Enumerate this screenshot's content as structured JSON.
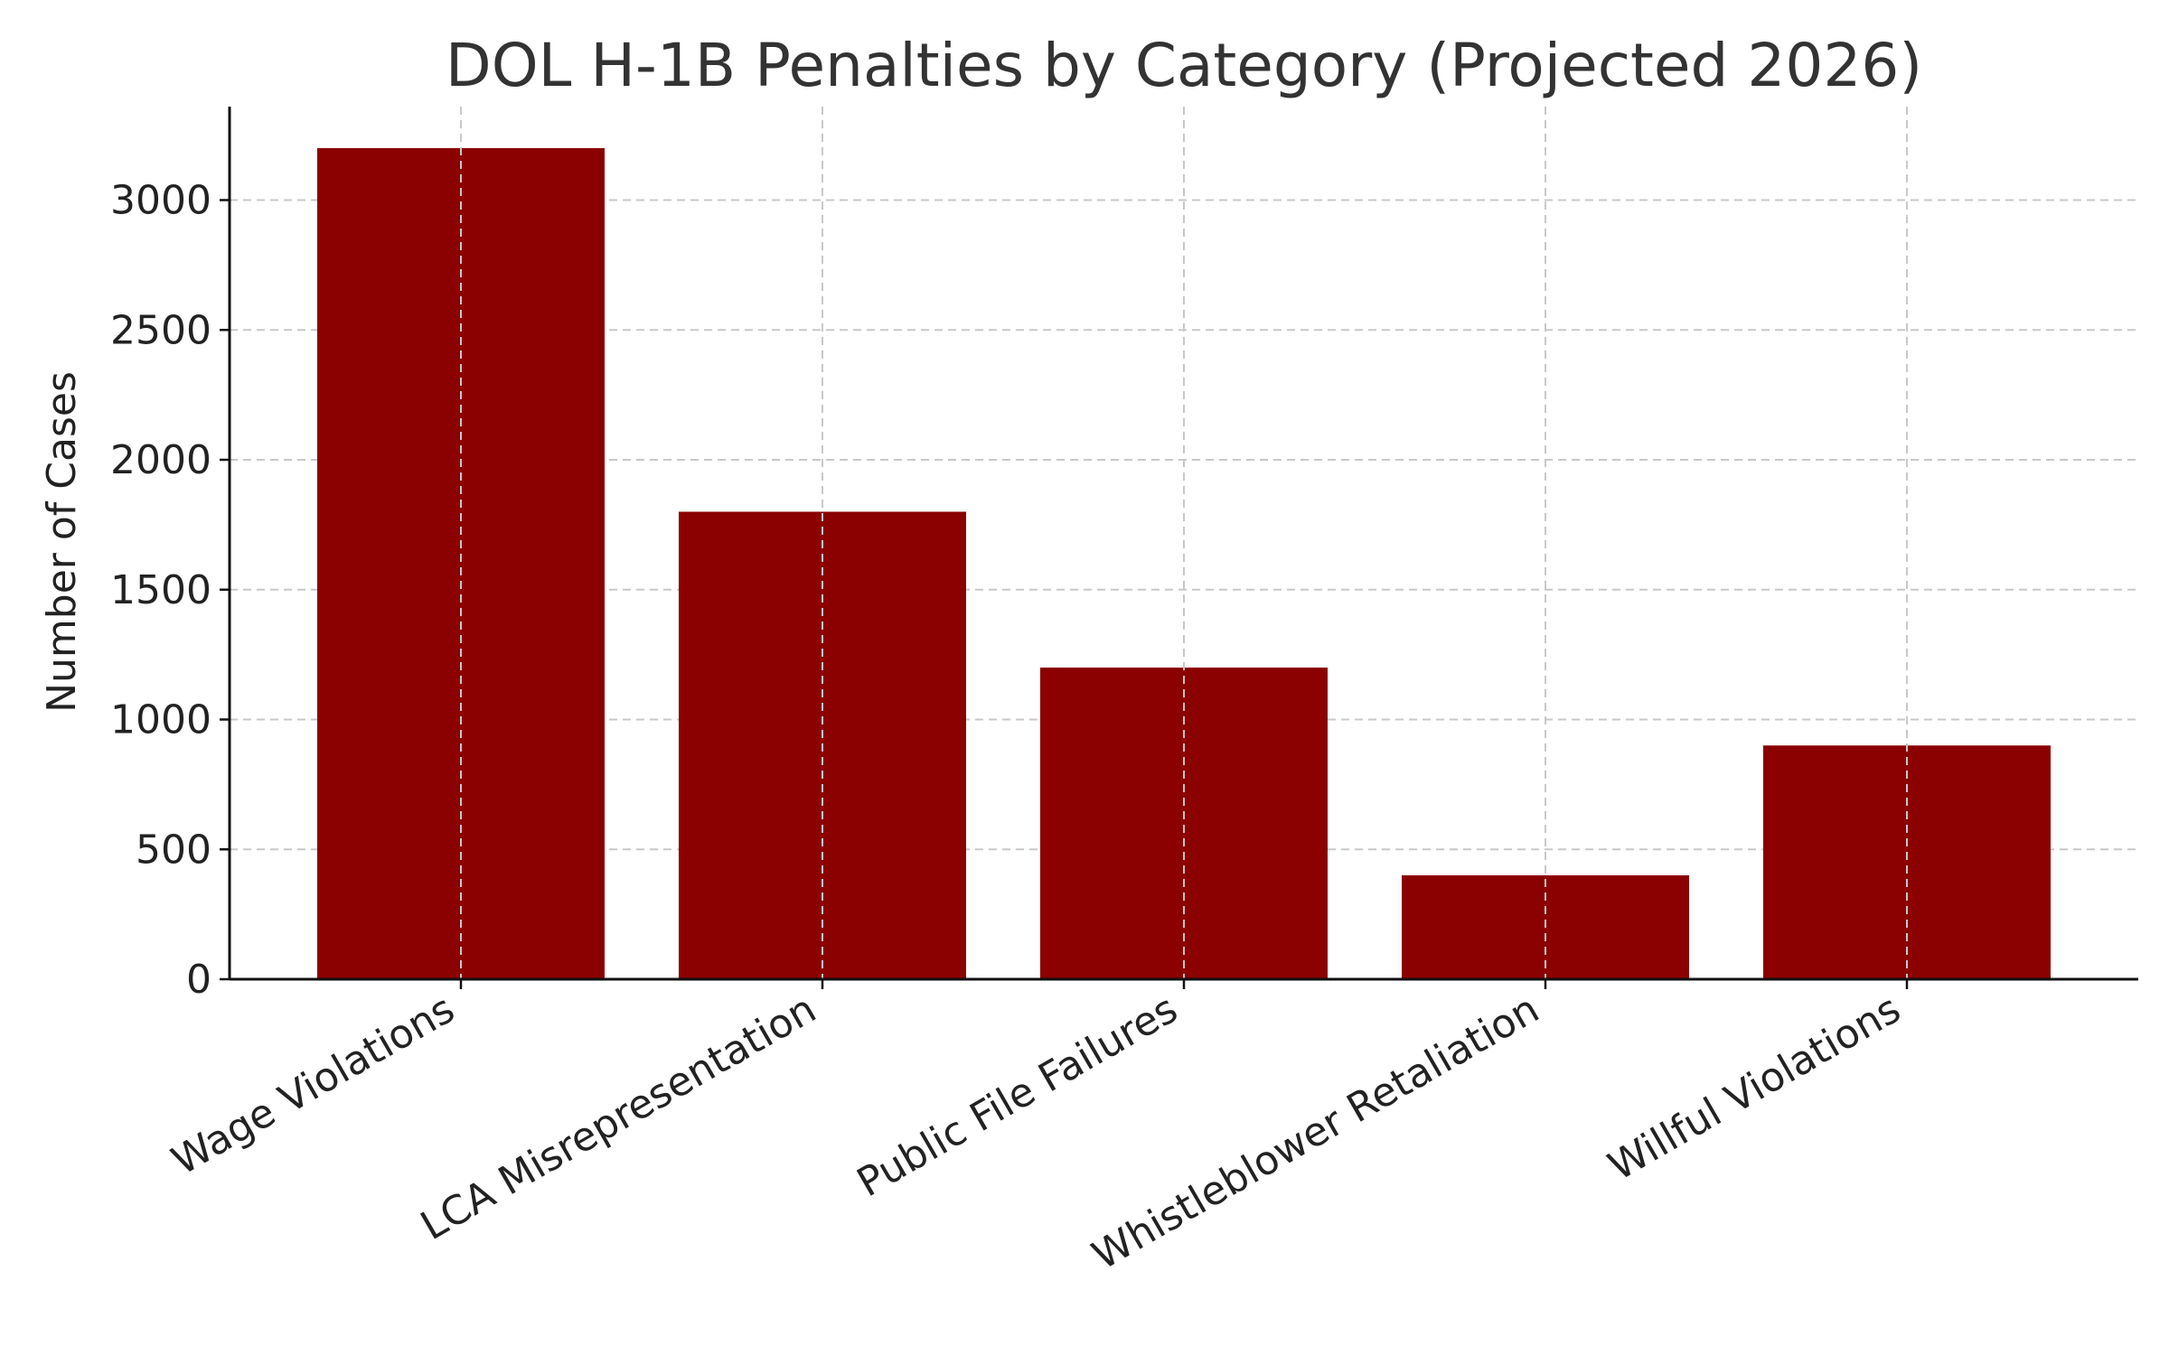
{
  "chart_data": {
    "type": "bar",
    "title": "DOL H-1B Penalties by Category (Projected 2026)",
    "xlabel": "",
    "ylabel": "Number of Cases",
    "categories": [
      "Wage Violations",
      "LCA Misrepresentation",
      "Public File Failures",
      "Whistleblower Retaliation",
      "Willful Violations"
    ],
    "values": [
      3200,
      1800,
      1200,
      400,
      900
    ],
    "ylim": [
      0,
      3360
    ],
    "yticks": [
      0,
      500,
      1000,
      1500,
      2000,
      2500,
      3000
    ],
    "grid": true,
    "bar_color": "#8b0000",
    "grid_color": "#c8c8c8",
    "text_color": "#222222",
    "title_color": "#333333"
  }
}
